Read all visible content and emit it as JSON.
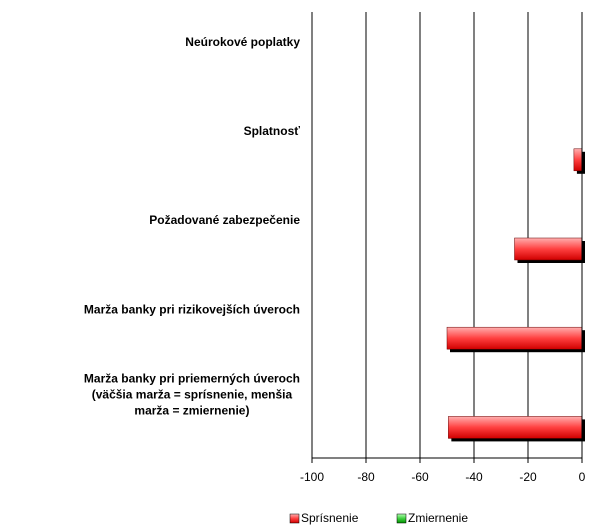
{
  "chart_data": {
    "type": "hbar",
    "categories": [
      "Neúrokové poplatky",
      "Splatnosť",
      "Požadované zabezpečenie",
      "Marža banky pri rizikovejších úveroch",
      "Marža banky pri priemerných úveroch\n(väčšia marža = sprísnenie, menšia\nmarža = zmiernenie)"
    ],
    "series": [
      {
        "name": "Sprísnenie",
        "color": "#ff3333",
        "values": [
          0,
          -3,
          -25,
          -50,
          -49.5
        ]
      },
      {
        "name": "Zmiernenie",
        "color": "#33cc33",
        "values": [
          0,
          0,
          0,
          0,
          0
        ]
      }
    ],
    "xlim": [
      -100,
      0
    ],
    "xticks": [
      -100,
      -80,
      -60,
      -40,
      -20,
      0
    ],
    "grid": true,
    "legend": "bottom"
  }
}
